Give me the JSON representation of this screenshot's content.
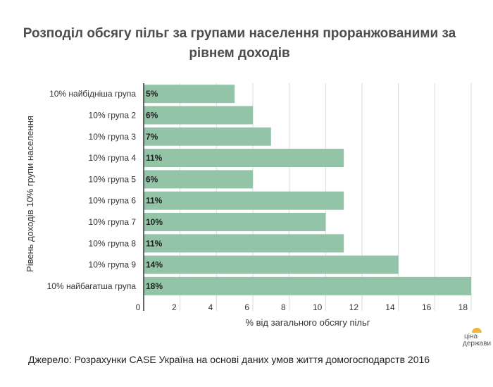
{
  "chart_data": {
    "type": "bar",
    "orientation": "horizontal",
    "title": "Розподіл обсягу пільг за групами населення проранжованими за рівнем доходів",
    "xlabel": "% від загального обсягу пільг",
    "ylabel": "Рівень доходів 10% групи населення",
    "categories": [
      "10% найбідніша група",
      "10% група 2",
      "10% група 3",
      "10% група 4",
      "10% група 5",
      "10% група 6",
      "10% група 7",
      "10% група 8",
      "10% група 9",
      "10% найбагатшa група"
    ],
    "values": [
      5.0,
      6.0,
      7.0,
      11.0,
      6.0,
      11.0,
      10.0,
      11.0,
      14.0,
      18.0
    ],
    "data_labels": [
      "5%",
      "6%",
      "7%",
      "11%",
      "6%",
      "11%",
      "10%",
      "11%",
      "14%",
      "18%"
    ],
    "xlim": [
      0,
      18
    ],
    "xticks": [
      0,
      2,
      4,
      6,
      8,
      10,
      12,
      14,
      16,
      18
    ],
    "grid": "vertical",
    "bar_color": "#93c4a7",
    "legend": "none"
  },
  "source": "Джерело: Розрахунки CASE Україна на основі даних умов життя домогосподарств 2016",
  "logo": {
    "line1": "ціна",
    "line2": "держави"
  }
}
